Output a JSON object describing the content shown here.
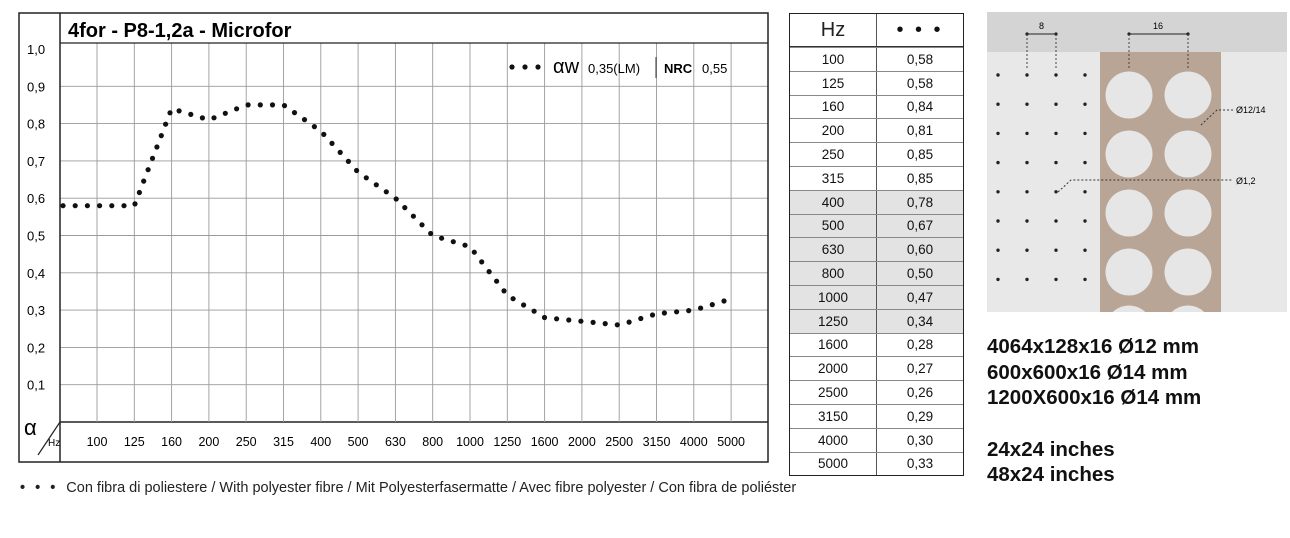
{
  "chart_data": {
    "type": "scatter",
    "title": "4for - P8-1,2a - Microfor",
    "ylabel": "α",
    "xlabel": "Hz",
    "ylim": [
      0,
      1
    ],
    "yticks": [
      "1,0",
      "0,9",
      "0,8",
      "0,7",
      "0,6",
      "0,5",
      "0,4",
      "0,3",
      "0,2",
      "0,1"
    ],
    "categories": [
      "100",
      "125",
      "160",
      "200",
      "250",
      "315",
      "400",
      "500",
      "630",
      "800",
      "1000",
      "1250",
      "1600",
      "2000",
      "2500",
      "3150",
      "4000",
      "5000"
    ],
    "grid": true,
    "series": [
      {
        "values": [
          0.58,
          0.58,
          0.84,
          0.81,
          0.85,
          0.85,
          0.78,
          0.67,
          0.6,
          0.5,
          0.47,
          0.34,
          0.28,
          0.27,
          0.26,
          0.29,
          0.3,
          0.33
        ]
      }
    ],
    "legend": {
      "alpha_w_symbol": "αw",
      "alpha_w_value": "0,35(LM)",
      "nrc_label": "NRC",
      "nrc_value": "0,55",
      "placement": "top-right"
    }
  },
  "table": {
    "header_hz": "Hz",
    "header_series": "• • •",
    "rows": [
      {
        "hz": "100",
        "value": "0,58"
      },
      {
        "hz": "125",
        "value": "0,58"
      },
      {
        "hz": "160",
        "value": "0,84"
      },
      {
        "hz": "200",
        "value": "0,81"
      },
      {
        "hz": "250",
        "value": "0,85"
      },
      {
        "hz": "315",
        "value": "0,85"
      },
      {
        "hz": "400",
        "value": "0,78"
      },
      {
        "hz": "500",
        "value": "0,67"
      },
      {
        "hz": "630",
        "value": "0,60"
      },
      {
        "hz": "800",
        "value": "0,50"
      },
      {
        "hz": "1000",
        "value": "0,47"
      },
      {
        "hz": "1250",
        "value": "0,34"
      },
      {
        "hz": "1600",
        "value": "0,28"
      },
      {
        "hz": "2000",
        "value": "0,27"
      },
      {
        "hz": "2500",
        "value": "0,26"
      },
      {
        "hz": "3150",
        "value": "0,29"
      },
      {
        "hz": "4000",
        "value": "0,30"
      },
      {
        "hz": "5000",
        "value": "0,33"
      }
    ]
  },
  "diagram": {
    "pitch_small": "8",
    "pitch_large": "16",
    "label_large_hole": "Ø12/14",
    "label_small_hole": "Ø1,2",
    "colors": {
      "background": "#e8e8e8",
      "top_band": "#d4d4d4",
      "panel": "#b8a596",
      "hole": "#e6e6e6"
    }
  },
  "dimensions": {
    "lines_mm": [
      "4064x128x16 Ø12 mm",
      "600x600x16 Ø14 mm",
      "1200X600x16 Ø14 mm"
    ],
    "lines_in": [
      "24x24 inches",
      "48x24 inches"
    ]
  },
  "footer": {
    "dots": "• • •",
    "text": "Con fibra di poliestere / With polyester fibre / Mit Polyesterfasermatte / Avec fibre polyester / Con fibra de poliéster"
  }
}
